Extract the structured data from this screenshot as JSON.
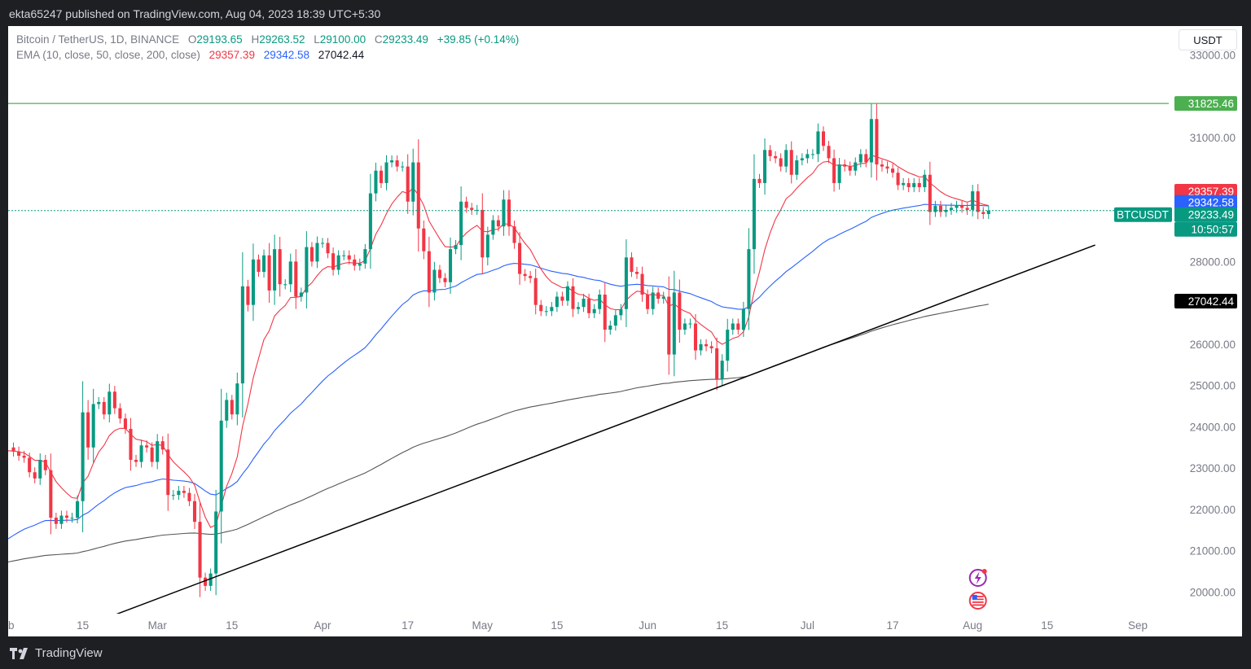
{
  "header": {
    "publish_text": "ekta65247 published on TradingView.com, Aug 04, 2023 18:39 UTC+5:30"
  },
  "legend": {
    "symbol": "Bitcoin / TetherUS, 1D, BINANCE",
    "o_label": "O",
    "o": "29193.65",
    "h_label": "H",
    "h": "29263.52",
    "l_label": "L",
    "l": "29100.00",
    "c_label": "C",
    "c": "29233.49",
    "change": "+39.85 (+0.14%)",
    "ema_label": "EMA (10, close, 50, close, 200, close)",
    "ema10": "29357.39",
    "ema50": "29342.58",
    "ema200": "27042.44"
  },
  "currency_button": "USDT",
  "footer": {
    "brand": "TradingView"
  },
  "colors": {
    "up": "#089981",
    "down": "#f23645",
    "ema10": "#f23645",
    "ema50": "#2962ff",
    "ema200": "#000000",
    "resistance": "#4caf50",
    "trendline": "#000000"
  },
  "chart_data": {
    "type": "candlestick",
    "symbol": "BTCUSDT",
    "timeframe": "1D",
    "y_axis_ticks": [
      20000,
      21000,
      22000,
      23000,
      24000,
      25000,
      26000,
      27000,
      28000,
      29000,
      30000,
      31000,
      32000,
      33000
    ],
    "y_axis_labels": [
      "20000.00",
      "21000.00",
      "22000.00",
      "23000.00",
      "24000.00",
      "25000.00",
      "26000.00",
      "28000.00",
      "31000.00",
      "33000.00"
    ],
    "ylim": [
      19300,
      33700
    ],
    "x_axis_labels": [
      "b",
      "15",
      "Mar",
      "15",
      "Apr",
      "17",
      "May",
      "15",
      "Jun",
      "15",
      "Jul",
      "17",
      "Aug",
      "15",
      "Sep"
    ],
    "x_axis_dates": [
      "2023-02-01",
      "2023-02-15",
      "2023-03-01",
      "2023-03-15",
      "2023-04-01",
      "2023-04-17",
      "2023-05-01",
      "2023-05-15",
      "2023-06-01",
      "2023-06-15",
      "2023-07-01",
      "2023-07-17",
      "2023-08-01",
      "2023-08-15",
      "2023-09-01"
    ],
    "x_range": [
      "2023-02-01",
      "2023-09-01"
    ],
    "price_labels": {
      "resistance": "31825.46",
      "ema10": "29357.39",
      "ema50": "29342.58",
      "last": "29233.49",
      "countdown": "10:50:57",
      "ema200": "27042.44",
      "symbol_tag": "BTCUSDT"
    },
    "resistance_level": 31825.46,
    "last_price": 29233.49,
    "trendline": [
      [
        "2023-02-20",
        19400
      ],
      [
        "2023-08-24",
        28400
      ]
    ],
    "closes": [
      [
        "2023-02-01",
        23500
      ],
      [
        "2023-02-02",
        23400
      ],
      [
        "2023-02-03",
        23300
      ],
      [
        "2023-02-04",
        23250
      ],
      [
        "2023-02-05",
        22900
      ],
      [
        "2023-02-06",
        22750
      ],
      [
        "2023-02-07",
        23200
      ],
      [
        "2023-02-08",
        22950
      ],
      [
        "2023-02-09",
        21800
      ],
      [
        "2023-02-10",
        21650
      ],
      [
        "2023-02-11",
        21850
      ],
      [
        "2023-02-12",
        21800
      ],
      [
        "2023-02-13",
        21800
      ],
      [
        "2023-02-14",
        22200
      ],
      [
        "2023-02-15",
        24350
      ],
      [
        "2023-02-16",
        23500
      ],
      [
        "2023-02-17",
        24550
      ],
      [
        "2023-02-18",
        24600
      ],
      [
        "2023-02-19",
        24300
      ],
      [
        "2023-02-20",
        24850
      ],
      [
        "2023-02-21",
        24450
      ],
      [
        "2023-02-22",
        24200
      ],
      [
        "2023-02-23",
        23950
      ],
      [
        "2023-02-24",
        23200
      ],
      [
        "2023-02-25",
        23150
      ],
      [
        "2023-02-26",
        23550
      ],
      [
        "2023-02-27",
        23500
      ],
      [
        "2023-02-28",
        23150
      ],
      [
        "2023-03-01",
        23650
      ],
      [
        "2023-03-02",
        23450
      ],
      [
        "2023-03-03",
        22350
      ],
      [
        "2023-03-04",
        22350
      ],
      [
        "2023-03-05",
        22450
      ],
      [
        "2023-03-06",
        22400
      ],
      [
        "2023-03-07",
        22200
      ],
      [
        "2023-03-08",
        21700
      ],
      [
        "2023-03-09",
        20350
      ],
      [
        "2023-03-10",
        20150
      ],
      [
        "2023-03-11",
        20450
      ],
      [
        "2023-03-12",
        21950
      ],
      [
        "2023-03-13",
        24150
      ],
      [
        "2023-03-14",
        24650
      ],
      [
        "2023-03-15",
        24300
      ],
      [
        "2023-03-16",
        25050
      ],
      [
        "2023-03-17",
        27400
      ],
      [
        "2023-03-18",
        26950
      ],
      [
        "2023-03-19",
        28050
      ],
      [
        "2023-03-20",
        27750
      ],
      [
        "2023-03-21",
        28150
      ],
      [
        "2023-03-22",
        27300
      ],
      [
        "2023-03-23",
        28300
      ],
      [
        "2023-03-24",
        27450
      ],
      [
        "2023-03-25",
        27450
      ],
      [
        "2023-03-26",
        28000
      ],
      [
        "2023-03-27",
        27150
      ],
      [
        "2023-03-28",
        27250
      ],
      [
        "2023-03-29",
        28350
      ],
      [
        "2023-03-30",
        28000
      ],
      [
        "2023-03-31",
        28450
      ],
      [
        "2023-04-01",
        28450
      ],
      [
        "2023-04-02",
        28200
      ],
      [
        "2023-04-03",
        27800
      ],
      [
        "2023-04-04",
        28150
      ],
      [
        "2023-04-05",
        28150
      ],
      [
        "2023-04-06",
        28050
      ],
      [
        "2023-04-07",
        27900
      ],
      [
        "2023-04-08",
        27950
      ],
      [
        "2023-04-09",
        28300
      ],
      [
        "2023-04-10",
        29650
      ],
      [
        "2023-04-11",
        30200
      ],
      [
        "2023-04-12",
        29900
      ],
      [
        "2023-04-13",
        30400
      ],
      [
        "2023-04-14",
        30450
      ],
      [
        "2023-04-15",
        30300
      ],
      [
        "2023-04-16",
        30300
      ],
      [
        "2023-04-17",
        29450
      ],
      [
        "2023-04-18",
        30400
      ],
      [
        "2023-04-19",
        28800
      ],
      [
        "2023-04-20",
        28250
      ],
      [
        "2023-04-21",
        27250
      ],
      [
        "2023-04-22",
        27800
      ],
      [
        "2023-04-23",
        27600
      ],
      [
        "2023-04-24",
        27500
      ],
      [
        "2023-04-25",
        28300
      ],
      [
        "2023-04-26",
        28400
      ],
      [
        "2023-04-27",
        29450
      ],
      [
        "2023-04-28",
        29300
      ],
      [
        "2023-04-29",
        29250
      ],
      [
        "2023-04-30",
        29250
      ],
      [
        "2023-05-01",
        28100
      ],
      [
        "2023-05-02",
        28650
      ],
      [
        "2023-05-03",
        29000
      ],
      [
        "2023-05-04",
        28850
      ],
      [
        "2023-05-05",
        29500
      ],
      [
        "2023-05-06",
        28850
      ],
      [
        "2023-05-07",
        28450
      ],
      [
        "2023-05-08",
        27700
      ],
      [
        "2023-05-09",
        27650
      ],
      [
        "2023-05-10",
        27600
      ],
      [
        "2023-05-11",
        26950
      ],
      [
        "2023-05-12",
        26800
      ],
      [
        "2023-05-13",
        26800
      ],
      [
        "2023-05-14",
        26900
      ],
      [
        "2023-05-15",
        27150
      ],
      [
        "2023-05-16",
        27050
      ],
      [
        "2023-05-17",
        27400
      ],
      [
        "2023-05-18",
        26850
      ],
      [
        "2023-05-19",
        26900
      ],
      [
        "2023-05-20",
        27100
      ],
      [
        "2023-05-21",
        26750
      ],
      [
        "2023-05-22",
        26850
      ],
      [
        "2023-05-23",
        27200
      ],
      [
        "2023-05-24",
        26350
      ],
      [
        "2023-05-25",
        26450
      ],
      [
        "2023-05-26",
        26700
      ],
      [
        "2023-05-27",
        26850
      ],
      [
        "2023-05-28",
        28100
      ],
      [
        "2023-05-29",
        27750
      ],
      [
        "2023-05-30",
        27700
      ],
      [
        "2023-05-31",
        27200
      ],
      [
        "2023-06-01",
        26850
      ],
      [
        "2023-06-02",
        27250
      ],
      [
        "2023-06-03",
        27100
      ],
      [
        "2023-06-04",
        27150
      ],
      [
        "2023-06-05",
        25750
      ],
      [
        "2023-06-06",
        27250
      ],
      [
        "2023-06-07",
        26350
      ],
      [
        "2023-06-08",
        26500
      ],
      [
        "2023-06-09",
        26500
      ],
      [
        "2023-06-10",
        25850
      ],
      [
        "2023-06-11",
        26000
      ],
      [
        "2023-06-12",
        25950
      ],
      [
        "2023-06-13",
        25900
      ],
      [
        "2023-06-14",
        25150
      ],
      [
        "2023-06-15",
        25600
      ],
      [
        "2023-06-16",
        26350
      ],
      [
        "2023-06-17",
        26500
      ],
      [
        "2023-06-18",
        26350
      ],
      [
        "2023-06-19",
        26850
      ],
      [
        "2023-06-20",
        28300
      ],
      [
        "2023-06-21",
        30000
      ],
      [
        "2023-06-22",
        29900
      ],
      [
        "2023-06-23",
        30700
      ],
      [
        "2023-06-24",
        30550
      ],
      [
        "2023-06-25",
        30500
      ],
      [
        "2023-06-26",
        30300
      ],
      [
        "2023-06-27",
        30700
      ],
      [
        "2023-06-28",
        30100
      ],
      [
        "2023-06-29",
        30450
      ],
      [
        "2023-06-30",
        30500
      ],
      [
        "2023-07-01",
        30600
      ],
      [
        "2023-07-02",
        30600
      ],
      [
        "2023-07-03",
        31150
      ],
      [
        "2023-07-04",
        30800
      ],
      [
        "2023-07-05",
        30500
      ],
      [
        "2023-07-06",
        29900
      ],
      [
        "2023-07-07",
        30350
      ],
      [
        "2023-07-08",
        30300
      ],
      [
        "2023-07-09",
        30200
      ],
      [
        "2023-07-10",
        30400
      ],
      [
        "2023-07-11",
        30600
      ],
      [
        "2023-07-12",
        30400
      ],
      [
        "2023-07-13",
        31450
      ],
      [
        "2023-07-14",
        30350
      ],
      [
        "2023-07-15",
        30300
      ],
      [
        "2023-07-16",
        30250
      ],
      [
        "2023-07-17",
        30150
      ],
      [
        "2023-07-18",
        29850
      ],
      [
        "2023-07-19",
        29900
      ],
      [
        "2023-07-20",
        29800
      ],
      [
        "2023-07-21",
        29900
      ],
      [
        "2023-07-22",
        29800
      ],
      [
        "2023-07-23",
        30100
      ],
      [
        "2023-07-24",
        29200
      ],
      [
        "2023-07-25",
        29350
      ],
      [
        "2023-07-26",
        29200
      ],
      [
        "2023-07-27",
        29250
      ],
      [
        "2023-07-28",
        29300
      ],
      [
        "2023-07-29",
        29350
      ],
      [
        "2023-07-30",
        29300
      ],
      [
        "2023-07-31",
        29250
      ],
      [
        "2023-08-01",
        29700
      ],
      [
        "2023-08-02",
        29200
      ],
      [
        "2023-08-03",
        29150
      ],
      [
        "2023-08-04",
        29233.49
      ]
    ],
    "series": [
      {
        "name": "EMA 10",
        "last": 29357.39
      },
      {
        "name": "EMA 50",
        "last": 29342.58
      },
      {
        "name": "EMA 200",
        "last": 27042.44
      }
    ]
  }
}
